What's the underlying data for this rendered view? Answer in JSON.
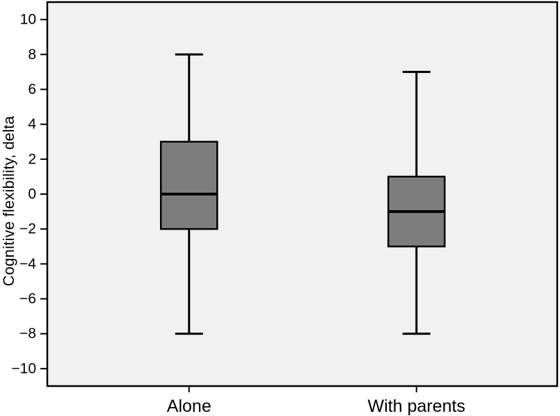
{
  "chart_data": {
    "type": "box",
    "title": "",
    "xlabel": "",
    "ylabel": "Cognitive flexibility, delta",
    "categories": [
      "Alone",
      "With parents"
    ],
    "series": [
      {
        "name": "Alone",
        "whisker_low": -8,
        "q1": -2,
        "median": 0,
        "q3": 3,
        "whisker_high": 8
      },
      {
        "name": "With parents",
        "whisker_low": -8,
        "q1": -3,
        "median": -1,
        "q3": 1,
        "whisker_high": 7
      }
    ],
    "ylim": [
      -11,
      11
    ],
    "yticks": [
      10,
      8,
      6,
      4,
      2,
      0,
      -2,
      -4,
      -6,
      -8,
      -10
    ],
    "ytick_labels": [
      "10",
      "8",
      "6",
      "4",
      "2",
      "0",
      "−2",
      "−4",
      "−6",
      "−8",
      "−10"
    ],
    "grid": false,
    "legend": "none",
    "colors": {
      "box_fill": "#7d7d7d",
      "line": "#000000",
      "plot_background": "#f1f1f1",
      "page_background": "#ffffff"
    }
  }
}
